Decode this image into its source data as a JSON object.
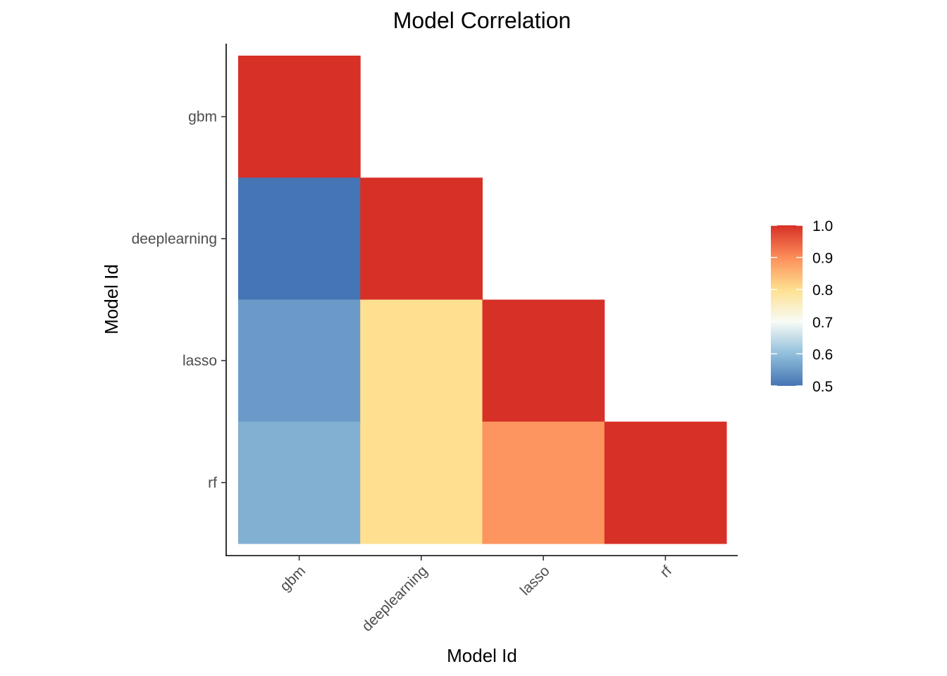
{
  "chart_data": {
    "type": "heatmap",
    "title": "Model Correlation",
    "xlabel": "Model Id",
    "ylabel": "Model Id",
    "x_categories": [
      "gbm",
      "deeplearning",
      "lasso",
      "rf"
    ],
    "y_categories": [
      "gbm",
      "deeplearning",
      "lasso",
      "rf"
    ],
    "cells": [
      {
        "x": "gbm",
        "y": "gbm",
        "value": 1.0
      },
      {
        "x": "gbm",
        "y": "deeplearning",
        "value": 0.5
      },
      {
        "x": "deeplearning",
        "y": "deeplearning",
        "value": 1.0
      },
      {
        "x": "gbm",
        "y": "lasso",
        "value": 0.55
      },
      {
        "x": "deeplearning",
        "y": "lasso",
        "value": 0.8
      },
      {
        "x": "lasso",
        "y": "lasso",
        "value": 1.0
      },
      {
        "x": "gbm",
        "y": "rf",
        "value": 0.58
      },
      {
        "x": "deeplearning",
        "y": "rf",
        "value": 0.8
      },
      {
        "x": "lasso",
        "y": "rf",
        "value": 0.89
      },
      {
        "x": "rf",
        "y": "rf",
        "value": 1.0
      }
    ],
    "color_scale": {
      "range": [
        0.5,
        1.0
      ],
      "ticks": [
        "0.5",
        "0.6",
        "0.7",
        "0.8",
        "0.9",
        "1.0"
      ],
      "stops": [
        {
          "value": 0.5,
          "color": "#4575b4"
        },
        {
          "value": 0.6,
          "color": "#91bfdb"
        },
        {
          "value": 0.7,
          "color": "#f7fbf5"
        },
        {
          "value": 0.8,
          "color": "#fee090"
        },
        {
          "value": 0.9,
          "color": "#fc8d59"
        },
        {
          "value": 1.0,
          "color": "#d73027"
        }
      ]
    },
    "legend_position": "right",
    "grid": false
  }
}
